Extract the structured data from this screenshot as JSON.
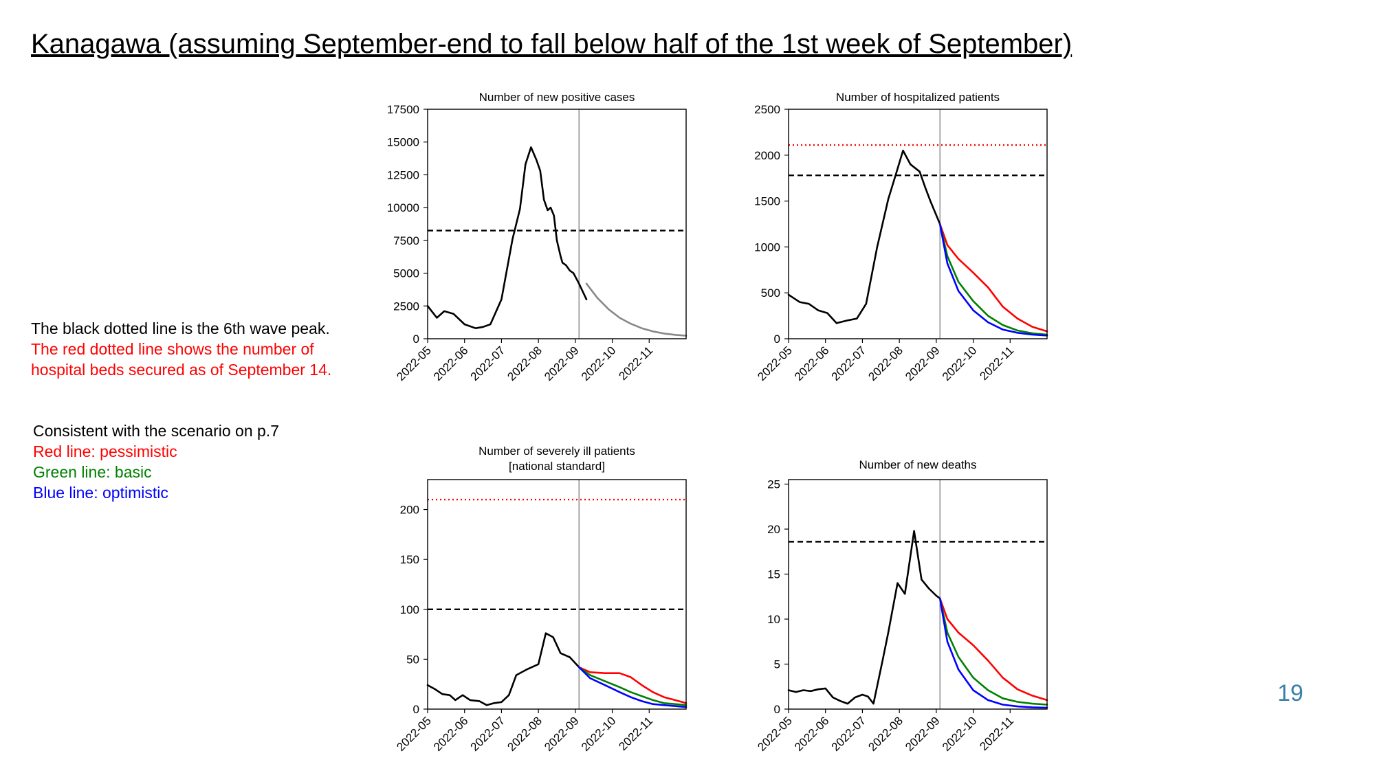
{
  "slide": {
    "title": "Kanagawa (assuming September-end to fall below half of the 1st week of September)",
    "note_black_line": "The black dotted line is the 6th wave peak.",
    "note_red_line_1": "The red dotted line shows the number of",
    "note_red_line_2": "hospital beds secured as of September 14.",
    "scenario_heading": "Consistent with the scenario on p.7",
    "scenario_red": "Red line: pessimistic",
    "scenario_green": "Green line: basic",
    "scenario_blue": "Blue line: optimistic",
    "page_number": "19"
  },
  "colors": {
    "black": "#000000",
    "red": "#ff0000",
    "green": "#008000",
    "blue": "#0000ff",
    "gray": "#888888",
    "page_number": "#3a7fa8"
  },
  "chart_data": [
    {
      "type": "line",
      "title": "Number of new positive cases",
      "x_tick_labels": [
        "2022-05",
        "2022-06",
        "2022-07",
        "2022-08",
        "2022-09",
        "2022-10",
        "2022-11"
      ],
      "ylim": [
        0,
        17500
      ],
      "y_ticks": [
        0,
        2500,
        5000,
        7500,
        10000,
        12500,
        15000,
        17500
      ],
      "reference_lines": [
        {
          "name": "6th wave peak",
          "value": 8250,
          "style": "dashed",
          "color": "#000000"
        }
      ],
      "forecast_start": 4.1,
      "series": [
        {
          "role": "observed",
          "color": "#000000",
          "x": [
            0,
            0.25,
            0.45,
            0.7,
            1,
            1.3,
            1.5,
            1.7,
            2,
            2.3,
            2.5,
            2.65,
            2.8,
            2.95,
            3.05,
            3.15,
            3.25,
            3.33,
            3.42,
            3.5,
            3.6,
            3.65,
            3.75,
            3.85,
            3.95,
            4.1,
            4.3
          ],
          "y": [
            2500,
            1600,
            2100,
            1900,
            1100,
            800,
            900,
            1100,
            3000,
            7600,
            9900,
            13300,
            14600,
            13600,
            12800,
            10600,
            9800,
            10000,
            9400,
            7500,
            6300,
            5800,
            5600,
            5200,
            5000,
            4200,
            3000
          ]
        },
        {
          "role": "forecast",
          "color": "#888888",
          "x": [
            4.3,
            4.6,
            4.9,
            5.2,
            5.5,
            5.8,
            6.1,
            6.4,
            6.7,
            7
          ],
          "y": [
            4200,
            3100,
            2250,
            1600,
            1150,
            800,
            560,
            400,
            300,
            230
          ]
        }
      ]
    },
    {
      "type": "line",
      "title": "Number of hospitalized patients",
      "x_tick_labels": [
        "2022-05",
        "2022-06",
        "2022-07",
        "2022-08",
        "2022-09",
        "2022-10",
        "2022-11"
      ],
      "ylim": [
        0,
        2500
      ],
      "y_ticks": [
        0,
        500,
        1000,
        1500,
        2000,
        2500
      ],
      "reference_lines": [
        {
          "name": "hospital beds secured as of September 14",
          "value": 2110,
          "style": "dotted",
          "color": "#ff0000"
        },
        {
          "name": "6th wave peak",
          "value": 1780,
          "style": "dashed",
          "color": "#000000"
        }
      ],
      "forecast_start": 4.1,
      "series": [
        {
          "role": "observed",
          "color": "#000000",
          "x": [
            0,
            0.3,
            0.55,
            0.8,
            1.05,
            1.3,
            1.6,
            1.85,
            2.1,
            2.4,
            2.7,
            2.95,
            3.1,
            3.3,
            3.55,
            3.7,
            3.85,
            4.1
          ],
          "y": [
            480,
            400,
            380,
            310,
            280,
            170,
            200,
            220,
            380,
            1000,
            1520,
            1850,
            2050,
            1900,
            1820,
            1650,
            1490,
            1250
          ]
        },
        {
          "name": "pessimistic",
          "color": "#ff0000",
          "x": [
            4.1,
            4.3,
            4.6,
            5,
            5.4,
            5.8,
            6.2,
            6.6,
            7
          ],
          "y": [
            1250,
            1020,
            870,
            720,
            560,
            350,
            220,
            130,
            80
          ]
        },
        {
          "name": "basic",
          "color": "#008000",
          "x": [
            4.1,
            4.3,
            4.6,
            5,
            5.4,
            5.8,
            6.2,
            6.6,
            7
          ],
          "y": [
            1250,
            900,
            620,
            410,
            250,
            150,
            90,
            60,
            45
          ]
        },
        {
          "name": "optimistic",
          "color": "#0000ff",
          "x": [
            4.1,
            4.3,
            4.6,
            5,
            5.4,
            5.8,
            6.2,
            6.6,
            7
          ],
          "y": [
            1250,
            820,
            520,
            310,
            180,
            100,
            65,
            45,
            35
          ]
        }
      ]
    },
    {
      "type": "line",
      "title_line_1": "Number of severely ill patients",
      "title_line_2": "[national standard]",
      "x_tick_labels": [
        "2022-05",
        "2022-06",
        "2022-07",
        "2022-08",
        "2022-09",
        "2022-10",
        "2022-11"
      ],
      "ylim": [
        0,
        230
      ],
      "y_ticks": [
        0,
        50,
        100,
        150,
        200
      ],
      "reference_lines": [
        {
          "name": "hospital beds secured as of September 14",
          "value": 210,
          "style": "dotted",
          "color": "#ff0000"
        },
        {
          "name": "6th wave peak",
          "value": 100,
          "style": "dashed",
          "color": "#000000"
        }
      ],
      "forecast_start": 4.1,
      "series": [
        {
          "role": "observed",
          "color": "#000000",
          "x": [
            0,
            0.2,
            0.4,
            0.6,
            0.75,
            0.95,
            1.15,
            1.4,
            1.6,
            1.8,
            2,
            2.2,
            2.4,
            2.7,
            3,
            3.2,
            3.4,
            3.6,
            3.85,
            4.1
          ],
          "y": [
            24,
            20,
            15,
            14,
            9,
            14,
            9,
            8,
            4,
            6,
            7,
            14,
            34,
            40,
            45,
            76,
            72,
            56,
            52,
            42
          ]
        },
        {
          "name": "pessimistic",
          "color": "#ff0000",
          "x": [
            4.1,
            4.4,
            4.8,
            5.2,
            5.5,
            5.8,
            6.1,
            6.4,
            6.7,
            7
          ],
          "y": [
            42,
            37,
            36,
            36,
            32,
            24,
            17,
            12,
            9,
            6
          ]
        },
        {
          "name": "basic",
          "color": "#008000",
          "x": [
            4.1,
            4.4,
            4.8,
            5.2,
            5.5,
            5.8,
            6.1,
            6.4,
            6.7,
            7
          ],
          "y": [
            42,
            34,
            28,
            22,
            17,
            13,
            9,
            6,
            5,
            4
          ]
        },
        {
          "name": "optimistic",
          "color": "#0000ff",
          "x": [
            4.1,
            4.4,
            4.8,
            5.2,
            5.5,
            5.8,
            6.1,
            6.4,
            6.7,
            7
          ],
          "y": [
            42,
            31,
            24,
            17,
            12,
            8,
            5,
            4,
            3,
            2
          ]
        }
      ]
    },
    {
      "type": "line",
      "title": "Number of new deaths",
      "x_tick_labels": [
        "2022-05",
        "2022-06",
        "2022-07",
        "2022-08",
        "2022-09",
        "2022-10",
        "2022-11"
      ],
      "ylim": [
        0,
        25.5
      ],
      "y_ticks": [
        0,
        5,
        10,
        15,
        20,
        25
      ],
      "reference_lines": [
        {
          "name": "6th wave peak",
          "value": 18.6,
          "style": "dashed",
          "color": "#000000"
        }
      ],
      "forecast_start": 4.1,
      "series": [
        {
          "role": "observed",
          "color": "#000000",
          "x": [
            0,
            0.2,
            0.4,
            0.6,
            0.8,
            1,
            1.2,
            1.4,
            1.6,
            1.8,
            2,
            2.15,
            2.3,
            2.55,
            2.7,
            2.95,
            3.15,
            3.4,
            3.6,
            3.8,
            4,
            4.1
          ],
          "y": [
            2.1,
            1.9,
            2.1,
            2,
            2.2,
            2.3,
            1.3,
            0.9,
            0.6,
            1.3,
            1.6,
            1.4,
            0.6,
            5.5,
            8.5,
            14,
            12.8,
            19.8,
            14.4,
            13.4,
            12.6,
            12.3
          ]
        },
        {
          "name": "pessimistic",
          "color": "#ff0000",
          "x": [
            4.1,
            4.3,
            4.6,
            5,
            5.4,
            5.8,
            6.2,
            6.6,
            7
          ],
          "y": [
            12.3,
            10,
            8.5,
            7.1,
            5.4,
            3.5,
            2.2,
            1.5,
            1
          ]
        },
        {
          "name": "basic",
          "color": "#008000",
          "x": [
            4.1,
            4.3,
            4.6,
            5,
            5.4,
            5.8,
            6.2,
            6.6,
            7
          ],
          "y": [
            12.3,
            8.5,
            5.8,
            3.5,
            2.1,
            1.2,
            0.8,
            0.6,
            0.5
          ]
        },
        {
          "name": "optimistic",
          "color": "#0000ff",
          "x": [
            4.1,
            4.3,
            4.6,
            5,
            5.4,
            5.8,
            6.2,
            6.6,
            7
          ],
          "y": [
            12.3,
            7.5,
            4.4,
            2.1,
            1,
            0.5,
            0.3,
            0.2,
            0.15
          ]
        }
      ]
    }
  ]
}
